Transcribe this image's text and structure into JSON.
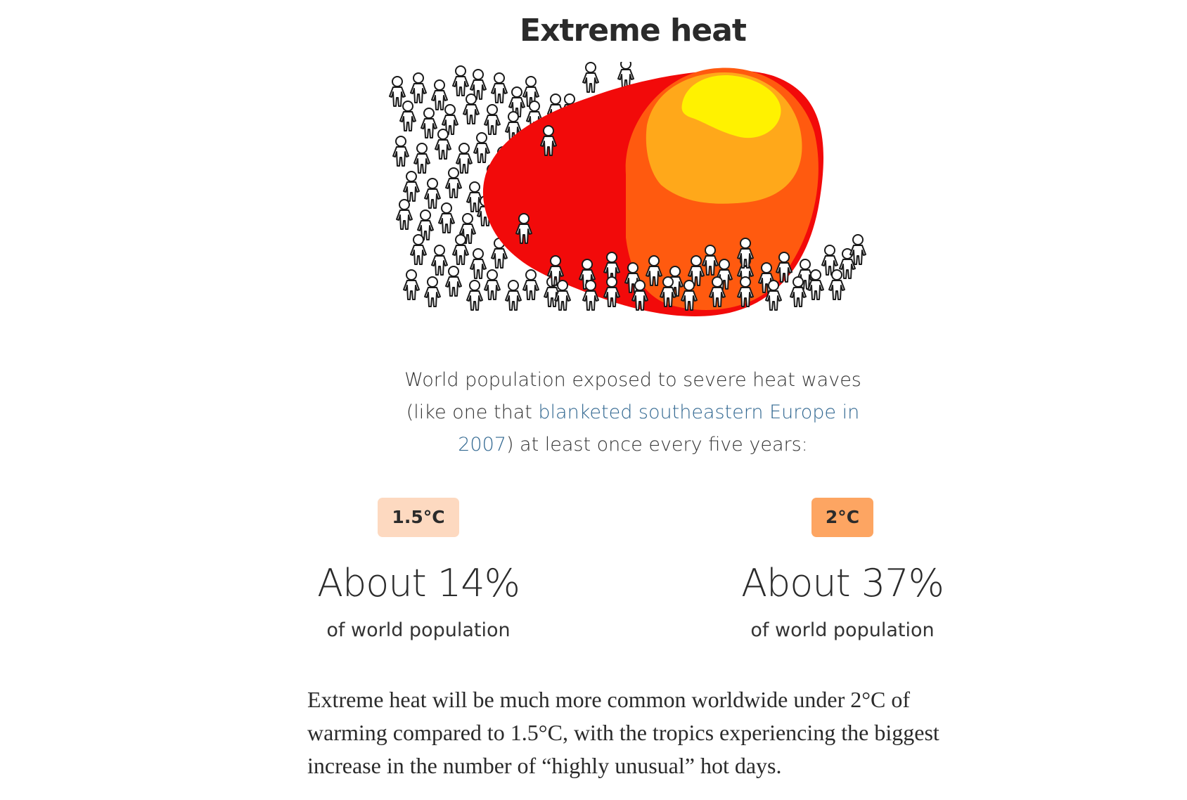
{
  "header": {
    "title": "Extreme heat"
  },
  "illustration": {
    "icon": "heat-blob-crowd-illustration",
    "colors": {
      "red": "#f20a0a",
      "deep_orange": "#ff5a0f",
      "orange": "#ffa81a",
      "yellow": "#fff200",
      "outline": "#1a1a1a"
    }
  },
  "caption": {
    "text_before": "World population exposed to severe heat waves (like one that ",
    "link_text": "blanketed southeastern Europe in 2007",
    "text_after": ")  at least once every five years:"
  },
  "scenarios": [
    {
      "badge": "1.5°C",
      "badge_color": "#fdd9c0",
      "value": "About 14%",
      "unit": "of world population"
    },
    {
      "badge": "2°C",
      "badge_color": "#fda562",
      "value": "About 37%",
      "unit": "of world population"
    }
  ],
  "body": {
    "text": "Extreme heat will be much more common worldwide under 2°C of warming compared to 1.5°C, with the tropics experiencing the biggest increase in the number of “highly unusual” hot days."
  }
}
